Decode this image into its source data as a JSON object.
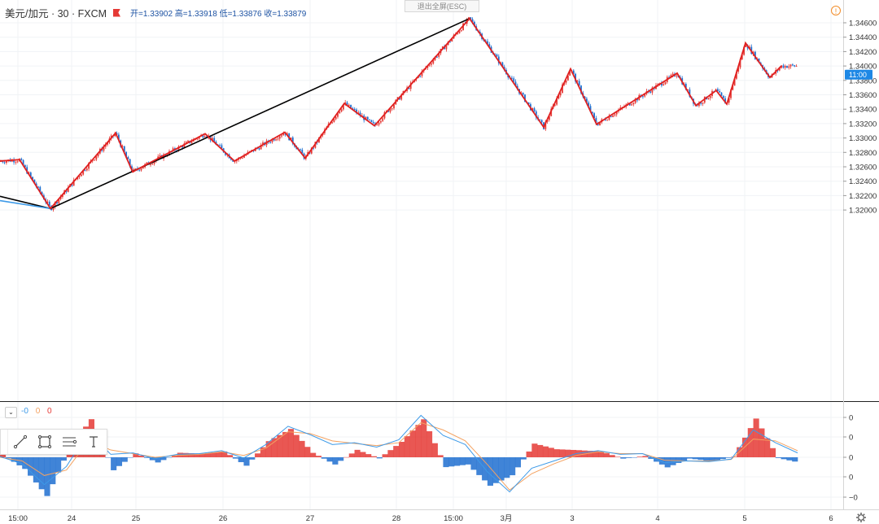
{
  "header": {
    "symbol": "美元/加元 · 30 · FXCM",
    "open": "开=1.33902",
    "high": "高=1.33918",
    "low": "低=1.33876",
    "close": "收=1.33879"
  },
  "exit_fullscreen": "退出全屏(ESC)",
  "warning_label": "!",
  "colors": {
    "up": "#e53935",
    "down": "#1e6fd0",
    "zigzag": "#e02020",
    "trendline": "#000000",
    "macd_line": "#3d9ae8",
    "signal_line": "#f4a261",
    "price_tag_bg": "#1e88e5"
  },
  "macd": {
    "values": [
      "-0",
      "0",
      "0"
    ],
    "value_colors": [
      "#3d9ae8",
      "#f4a261",
      "#e53935"
    ]
  },
  "toolbar_tools": [
    "line-tool-icon",
    "rectangle-tool-icon",
    "fib-tool-icon",
    "text-tool-icon"
  ],
  "chart_data": [
    {
      "type": "candlestick",
      "title": "",
      "y_ticks": [
        "1.34600",
        "1.34400",
        "1.34200",
        "1.34000",
        "1.33800",
        "1.33600",
        "1.33400",
        "1.33200",
        "1.33000",
        "1.32800",
        "1.32600",
        "1.32400",
        "1.32200",
        "1.32000"
      ],
      "ylim": [
        1.3196,
        1.3474
      ],
      "x_ticks": [
        "15:00",
        "24",
        "25",
        "26",
        "27",
        "28",
        "15:00",
        "3月",
        "3",
        "4",
        "5",
        "6"
      ],
      "current_price_label": "11:00",
      "current_price": 1.3388,
      "zigzag": [
        [
          0,
          1.3268
        ],
        [
          24,
          1.327
        ],
        [
          62,
          1.3202
        ],
        [
          142,
          1.3307
        ],
        [
          163,
          1.3253
        ],
        [
          252,
          1.3306
        ],
        [
          288,
          1.3268
        ],
        [
          350,
          1.3308
        ],
        [
          375,
          1.3272
        ],
        [
          423,
          1.3348
        ],
        [
          460,
          1.3317
        ],
        [
          577,
          1.3466
        ],
        [
          668,
          1.3315
        ],
        [
          701,
          1.3396
        ],
        [
          733,
          1.3319
        ],
        [
          832,
          1.339
        ],
        [
          855,
          1.3345
        ],
        [
          880,
          1.3366
        ],
        [
          893,
          1.3347
        ],
        [
          916,
          1.3432
        ],
        [
          946,
          1.3384
        ],
        [
          960,
          1.34
        ]
      ],
      "trendlines": [
        [
          [
            0,
            1.3219
          ],
          [
            62,
            1.3202
          ]
        ],
        [
          [
            62,
            1.3202
          ],
          [
            577,
            1.3466
          ]
        ],
        [
          [
            0,
            1.3213
          ],
          [
            62,
            1.3202
          ]
        ]
      ],
      "grid": true
    },
    {
      "type": "line",
      "title": "MACD",
      "y_ticks": [
        "0",
        "0",
        "0",
        "0",
        "−0"
      ],
      "ylim": [
        -0.00125,
        0.00125
      ],
      "series": [
        {
          "name": "",
          "values": [
            2e-05,
            -0.00018,
            -0.00075,
            -0.00025,
            0.0007,
            8e-05,
            0.00012,
            -4e-05,
            8e-05,
            0.0001,
            0.00018,
            -2e-05,
            0.00035,
            0.00085,
            0.00062,
            0.00035,
            0.0004,
            0.00028,
            0.00048,
            0.00115,
            0.0006,
            0.00035,
            -0.0004,
            -0.00095,
            -0.0003,
            -0.0001,
            0.0001,
            0.00018,
            8e-05,
            0.0001,
            -0.00015,
            -0.0001,
            -0.00012,
            -5e-05,
            0.00075,
            0.0004,
            0.00012
          ]
        },
        {
          "name": "",
          "values": [
            0.0,
            -0.0001,
            -0.0005,
            -0.00035,
            0.00045,
            0.0002,
            0.0001,
            0.0,
            5e-05,
            8e-05,
            0.00015,
            5e-05,
            0.00025,
            0.0007,
            0.00065,
            0.00045,
            0.00038,
            0.00032,
            0.0004,
            0.00095,
            0.00075,
            0.00045,
            -0.0002,
            -0.0009,
            -0.00045,
            -0.00018,
            5e-05,
            0.00015,
            0.0001,
            0.0001,
            -8e-05,
            -0.0001,
            -0.0001,
            -6e-05,
            0.0005,
            0.00045,
            0.00018
          ]
        }
      ]
    }
  ]
}
